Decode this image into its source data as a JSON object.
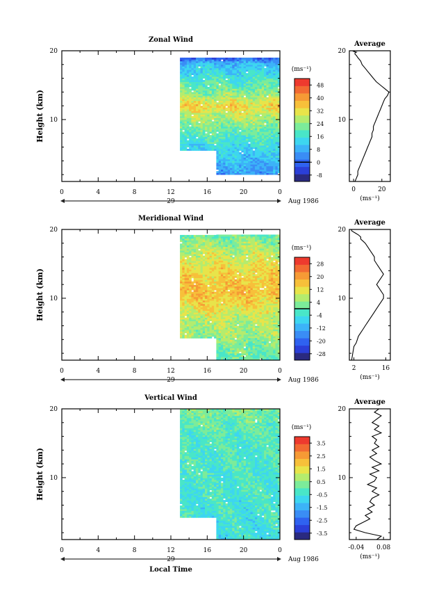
{
  "figure": {
    "xlabel": "Local Time",
    "date_label": "Aug 1986",
    "day_label": "29",
    "colorbar_unit": "(ms⁻¹)",
    "profile_title": "Average",
    "profile_unit": "(ms⁻¹)"
  },
  "colors": {
    "scale": [
      "#2a2a80",
      "#2b3fd8",
      "#2f62f0",
      "#3a8df5",
      "#3cb3f8",
      "#3dd6f0",
      "#49e6c8",
      "#7cec9a",
      "#b4ec6e",
      "#e8e44a",
      "#f7c03a",
      "#f69a35",
      "#f26a32",
      "#ee3a2e"
    ]
  },
  "chart_data": [
    {
      "type": "heatmap",
      "title": "Zonal Wind",
      "xlabel": "",
      "ylabel": "Height (km)",
      "xlim": [
        0,
        24
      ],
      "ylim": [
        1,
        20
      ],
      "x_ticks": [
        "0",
        "4",
        "8",
        "12",
        "16",
        "20",
        "0"
      ],
      "y_ticks": [
        "10",
        "20"
      ],
      "data_start": {
        "before_17h_from_km": 5.5,
        "from_17h_from_km": 2
      },
      "data_top_km": 18.8,
      "z_profile": [
        [
          2,
          6
        ],
        [
          5,
          12
        ],
        [
          8,
          20
        ],
        [
          10.5,
          28
        ],
        [
          12,
          34
        ],
        [
          13.5,
          24
        ],
        [
          15.5,
          18
        ],
        [
          18,
          10
        ],
        [
          19,
          -4
        ]
      ],
      "colorbar": {
        "ticks": [
          "48",
          "40",
          "32",
          "24",
          "16",
          "8",
          "0",
          "-8"
        ],
        "min": -12,
        "max": 52,
        "zero_line": 0
      },
      "profile": {
        "title": "Average",
        "xlabel": "(ms⁻¹)",
        "x_ticks": [
          "0",
          "20"
        ],
        "xlim": [
          -3,
          26
        ],
        "y_ticks": [
          "10",
          "20"
        ],
        "x": [
          1,
          2,
          3,
          3,
          4,
          5,
          6,
          7,
          8,
          9,
          10,
          11,
          12,
          13,
          13,
          14,
          14,
          15,
          16,
          17,
          18,
          19,
          20,
          21,
          22,
          24,
          25,
          22,
          19,
          16,
          14,
          12,
          10,
          8,
          6,
          5,
          3,
          2,
          1,
          1,
          2,
          0,
          1,
          0
        ],
        "y": [
          1.0,
          1.5,
          2.0,
          2.5,
          3.0,
          3.5,
          4.0,
          4.5,
          5.0,
          5.5,
          6.0,
          6.5,
          7.0,
          7.5,
          8.0,
          8.5,
          9.0,
          9.5,
          10.0,
          10.5,
          11.0,
          11.5,
          12.0,
          12.5,
          13.0,
          13.5,
          14.0,
          14.5,
          15.0,
          15.5,
          16.0,
          16.5,
          17.0,
          17.5,
          18.0,
          18.5,
          19.0,
          19.3,
          19.5,
          19.7,
          19.8,
          19.9,
          20.0,
          20.0
        ]
      }
    },
    {
      "type": "heatmap",
      "title": "Meridional Wind",
      "xlabel": "",
      "ylabel": "Height (km)",
      "xlim": [
        0,
        24
      ],
      "ylim": [
        1,
        20
      ],
      "x_ticks": [
        "0",
        "4",
        "8",
        "12",
        "16",
        "20",
        "0"
      ],
      "y_ticks": [
        "10",
        "20"
      ],
      "data_start": {
        "before_17h_from_km": 4.2,
        "from_17h_from_km": 1
      },
      "data_top_km": 19.2,
      "z_profile": [
        [
          1,
          0
        ],
        [
          4,
          4
        ],
        [
          7,
          8
        ],
        [
          9.5,
          14
        ],
        [
          11,
          16
        ],
        [
          13,
          14
        ],
        [
          14.5,
          12
        ],
        [
          16.5,
          8
        ],
        [
          19,
          2
        ]
      ],
      "colorbar": {
        "ticks": [
          "28",
          "20",
          "12",
          "4",
          "-4",
          "-12",
          "-20",
          "-28"
        ],
        "min": -32,
        "max": 32,
        "zero_line": 0
      },
      "profile": {
        "title": "Average",
        "xlabel": "(ms⁻¹)",
        "x_ticks": [
          "2",
          "16"
        ],
        "xlim": [
          0,
          18
        ],
        "y_ticks": [
          "10",
          "20"
        ],
        "x": [
          1,
          1.5,
          2,
          3,
          3.5,
          4,
          5,
          6,
          7,
          8,
          9,
          10,
          11,
          12,
          13,
          14,
          15,
          15,
          14,
          13,
          12,
          13,
          14,
          15,
          14,
          13,
          12,
          11,
          11,
          10,
          9,
          8,
          7,
          6,
          5,
          5,
          4,
          3,
          2,
          1,
          1
        ],
        "y": [
          1.0,
          2.0,
          3.0,
          3.5,
          4.0,
          4.5,
          5.0,
          5.5,
          6.0,
          6.5,
          7.0,
          7.5,
          8.0,
          8.5,
          9.0,
          9.5,
          10.0,
          10.5,
          11.0,
          11.5,
          12.0,
          12.5,
          13.0,
          13.5,
          14.0,
          14.5,
          15.0,
          15.5,
          16.0,
          16.5,
          17.0,
          17.5,
          18.0,
          18.3,
          18.6,
          18.9,
          19.2,
          19.4,
          19.6,
          19.8,
          20.0
        ]
      }
    },
    {
      "type": "heatmap",
      "title": "Vertical Wind",
      "xlabel": "Local Time",
      "ylabel": "Height (km)",
      "xlim": [
        0,
        24
      ],
      "ylim": [
        1,
        20
      ],
      "x_ticks": [
        "0",
        "4",
        "8",
        "12",
        "16",
        "20",
        "0"
      ],
      "y_ticks": [
        "10",
        "20"
      ],
      "data_start": {
        "before_17h_from_km": 4.2,
        "from_17h_from_km": 1
      },
      "data_top_km": 19.8,
      "z_profile": [
        [
          1,
          -0.6
        ],
        [
          6,
          -0.4
        ],
        [
          12,
          -0.3
        ],
        [
          16,
          -0.2
        ],
        [
          20,
          0.4
        ]
      ],
      "colorbar": {
        "ticks": [
          "3.5",
          "2.5",
          "1.5",
          "0.5",
          "-0.5",
          "-1.5",
          "-2.5",
          "-3.5"
        ],
        "min": -4,
        "max": 4,
        "zero_line": null
      },
      "profile": {
        "title": "Average",
        "xlabel": "(ms⁻¹)",
        "x_ticks": [
          "-0.04",
          "0.08"
        ],
        "xlim": [
          -0.07,
          0.11
        ],
        "y_ticks": [
          "10",
          "20"
        ],
        "x": [
          0.05,
          0.07,
          0.0,
          -0.05,
          -0.04,
          -0.01,
          0.02,
          0.0,
          0.03,
          0.01,
          0.04,
          0.02,
          0.03,
          0.06,
          0.03,
          0.05,
          0.01,
          0.04,
          0.05,
          0.02,
          0.06,
          0.03,
          0.07,
          0.04,
          0.02,
          0.05,
          0.03,
          0.06,
          0.04,
          0.05,
          0.03,
          0.07,
          0.04,
          0.06,
          0.03,
          0.05,
          0.07,
          0.04,
          0.06
        ],
        "y": [
          1.0,
          1.5,
          2.0,
          2.5,
          3.0,
          3.5,
          4.0,
          4.5,
          5.0,
          5.5,
          6.0,
          6.5,
          7.0,
          7.5,
          8.0,
          8.5,
          9.0,
          9.5,
          10.0,
          10.5,
          11.0,
          11.5,
          12.0,
          12.5,
          13.0,
          13.5,
          14.0,
          14.5,
          15.0,
          15.5,
          16.0,
          16.5,
          17.0,
          17.5,
          18.0,
          18.5,
          19.0,
          19.5,
          20.0
        ]
      }
    }
  ]
}
